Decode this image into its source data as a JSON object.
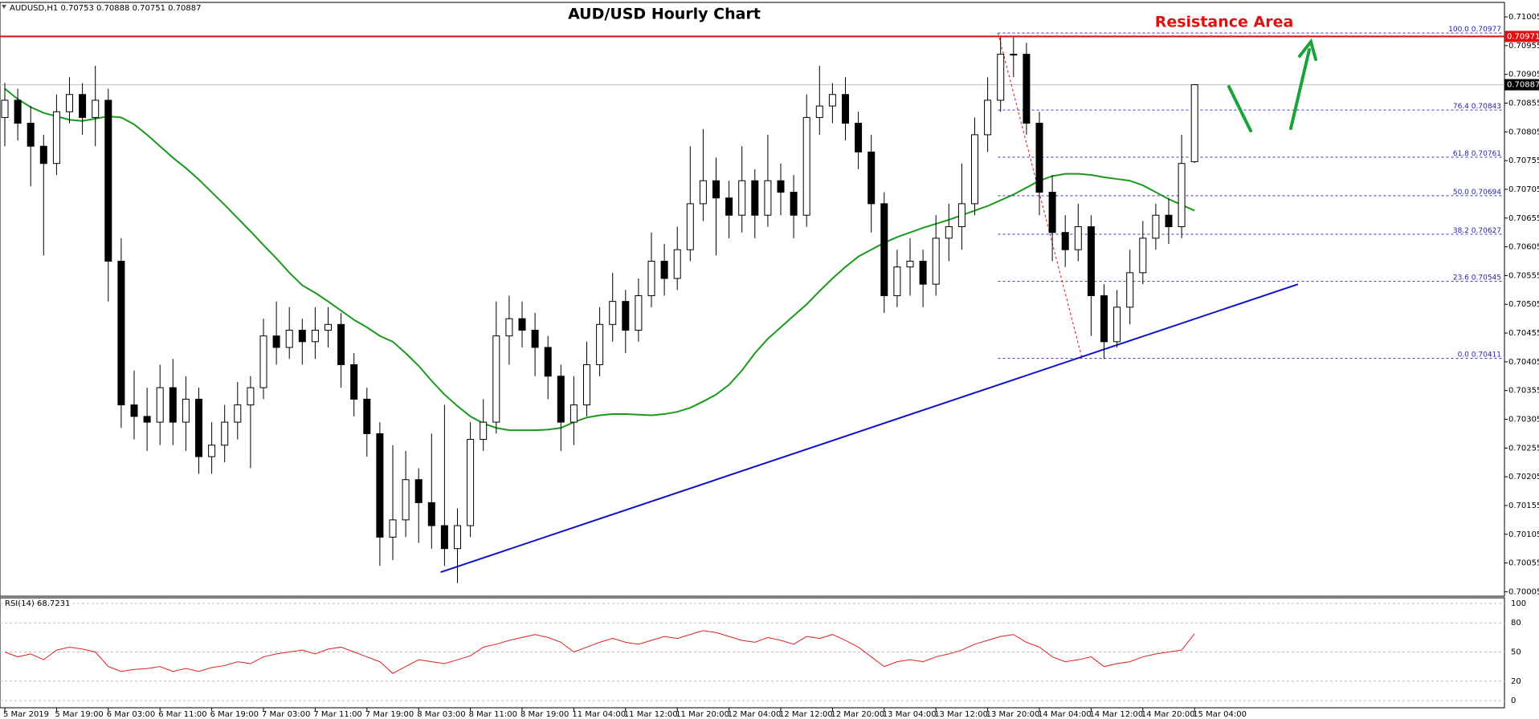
{
  "chart_data": [
    {
      "type": "candlestick",
      "title": "AUD/USD Hourly Chart",
      "symbol": "AUDUSD,H1",
      "annotation": "Resistance Area",
      "categories": [
        "5 Mar 2019",
        null,
        null,
        null,
        "5 Mar 19:00",
        null,
        null,
        null,
        "6 Mar 03:00",
        null,
        null,
        null,
        "6 Mar 11:00",
        null,
        null,
        null,
        "6 Mar 19:00",
        null,
        null,
        null,
        "7 Mar 03:00",
        null,
        null,
        null,
        "7 Mar 11:00",
        null,
        null,
        null,
        "7 Mar 19:00",
        null,
        null,
        null,
        "8 Mar 03:00",
        null,
        null,
        null,
        "8 Mar 11:00",
        null,
        null,
        null,
        "8 Mar 19:00",
        null,
        null,
        null,
        "11 Mar 04:00",
        null,
        null,
        null,
        "11 Mar 12:00",
        null,
        null,
        null,
        "11 Mar 20:00",
        null,
        null,
        null,
        "12 Mar 04:00",
        null,
        null,
        null,
        "12 Mar 12:00",
        null,
        null,
        null,
        "12 Mar 20:00",
        null,
        null,
        null,
        "13 Mar 04:00",
        null,
        null,
        null,
        "13 Mar 12:00",
        null,
        null,
        null,
        "13 Mar 20:00",
        null,
        null,
        null,
        "14 Mar 04:00",
        null,
        null,
        null,
        "14 Mar 12:00",
        null,
        null,
        null,
        "14 Mar 20:00",
        null,
        null,
        null,
        "15 Mar 04:00"
      ],
      "open": [
        0.7083,
        0.7086,
        0.7082,
        0.7078,
        0.7075,
        0.7084,
        0.7087,
        0.7083,
        0.7086,
        0.7058,
        0.7033,
        0.7031,
        0.703,
        0.7036,
        0.703,
        0.7034,
        0.7024,
        0.7026,
        0.703,
        0.7033,
        0.7036,
        0.7045,
        0.7043,
        0.7046,
        0.7044,
        0.7046,
        0.7047,
        0.704,
        0.7034,
        0.7028,
        0.701,
        0.7013,
        0.702,
        0.7016,
        0.7012,
        0.7008,
        0.7012,
        0.7027,
        0.703,
        0.7045,
        0.7048,
        0.7046,
        0.7043,
        0.7038,
        0.703,
        0.7033,
        0.704,
        0.7047,
        0.7051,
        0.7046,
        0.7052,
        0.7058,
        0.7055,
        0.706,
        0.7068,
        0.7072,
        0.7069,
        0.7066,
        0.7072,
        0.7066,
        0.7072,
        0.707,
        0.7066,
        0.7083,
        0.7085,
        0.7087,
        0.7082,
        0.7077,
        0.7068,
        0.7052,
        0.7057,
        0.7058,
        0.7054,
        0.7062,
        0.7064,
        0.7068,
        0.708,
        0.7086,
        0.7094,
        0.7094,
        0.7082,
        0.707,
        0.7063,
        0.706,
        0.7064,
        0.7052,
        0.7044,
        0.705,
        0.7056,
        0.7062,
        0.7066,
        0.7064,
        0.70753
      ],
      "high": [
        0.7089,
        0.7088,
        0.7085,
        0.708,
        0.7087,
        0.709,
        0.7089,
        0.7092,
        0.7088,
        0.7062,
        0.7039,
        0.7036,
        0.704,
        0.7041,
        0.7038,
        0.7036,
        0.703,
        0.7033,
        0.7037,
        0.7038,
        0.7048,
        0.7051,
        0.705,
        0.7048,
        0.705,
        0.705,
        0.7049,
        0.7042,
        0.7036,
        0.703,
        0.7026,
        0.7025,
        0.7022,
        0.7028,
        0.7033,
        0.7015,
        0.703,
        0.7034,
        0.7051,
        0.7052,
        0.7051,
        0.7049,
        0.7045,
        0.704,
        0.7038,
        0.7044,
        0.705,
        0.7056,
        0.7053,
        0.7055,
        0.7063,
        0.7061,
        0.7064,
        0.7078,
        0.7081,
        0.7076,
        0.7072,
        0.7078,
        0.7074,
        0.708,
        0.7075,
        0.7073,
        0.7087,
        0.7092,
        0.7089,
        0.709,
        0.7084,
        0.708,
        0.707,
        0.706,
        0.7062,
        0.706,
        0.7066,
        0.7068,
        0.7075,
        0.7083,
        0.709,
        0.7097,
        0.7097,
        0.7096,
        0.7084,
        0.7073,
        0.7066,
        0.7068,
        0.7066,
        0.7054,
        0.7053,
        0.706,
        0.7065,
        0.7068,
        0.7069,
        0.708,
        0.70888
      ],
      "low": [
        0.7078,
        0.7079,
        0.7071,
        0.7059,
        0.7073,
        0.7082,
        0.708,
        0.7078,
        0.7051,
        0.7029,
        0.7027,
        0.7025,
        0.7026,
        0.7026,
        0.7025,
        0.7021,
        0.7021,
        0.7023,
        0.7027,
        0.7022,
        0.7034,
        0.704,
        0.7041,
        0.704,
        0.7041,
        0.7043,
        0.7036,
        0.7031,
        0.7024,
        0.7005,
        0.7006,
        0.701,
        0.7009,
        0.7008,
        0.7005,
        0.7002,
        0.701,
        0.7025,
        0.7028,
        0.704,
        0.7043,
        0.7038,
        0.7034,
        0.7025,
        0.7026,
        0.7031,
        0.7038,
        0.7044,
        0.7042,
        0.7044,
        0.705,
        0.7052,
        0.7053,
        0.7058,
        0.7065,
        0.7059,
        0.7062,
        0.7063,
        0.7062,
        0.7064,
        0.7066,
        0.7062,
        0.7064,
        0.708,
        0.7082,
        0.7079,
        0.7074,
        0.7063,
        0.7049,
        0.705,
        0.7052,
        0.705,
        0.7052,
        0.7058,
        0.706,
        0.7066,
        0.7077,
        0.7084,
        0.709,
        0.708,
        0.7066,
        0.7058,
        0.7057,
        0.7058,
        0.7045,
        0.7041,
        0.7043,
        0.7047,
        0.7054,
        0.706,
        0.7061,
        0.7062,
        0.70751
      ],
      "close": [
        0.7086,
        0.7082,
        0.7078,
        0.7075,
        0.7084,
        0.7087,
        0.7083,
        0.7086,
        0.7058,
        0.7033,
        0.7031,
        0.703,
        0.7036,
        0.703,
        0.7034,
        0.7024,
        0.7026,
        0.703,
        0.7033,
        0.7036,
        0.7045,
        0.7043,
        0.7046,
        0.7044,
        0.7046,
        0.7047,
        0.704,
        0.7034,
        0.7028,
        0.701,
        0.7013,
        0.702,
        0.7016,
        0.7012,
        0.7008,
        0.7012,
        0.7027,
        0.703,
        0.7045,
        0.7048,
        0.7046,
        0.7043,
        0.7038,
        0.703,
        0.7033,
        0.704,
        0.7047,
        0.7051,
        0.7046,
        0.7052,
        0.7058,
        0.7055,
        0.706,
        0.7068,
        0.7072,
        0.7069,
        0.7066,
        0.7072,
        0.7066,
        0.7072,
        0.707,
        0.7066,
        0.7083,
        0.7085,
        0.7087,
        0.7082,
        0.7077,
        0.7068,
        0.7052,
        0.7057,
        0.7058,
        0.7054,
        0.7062,
        0.7064,
        0.7068,
        0.708,
        0.7086,
        0.7094,
        0.7094,
        0.7082,
        0.707,
        0.7063,
        0.706,
        0.7064,
        0.7052,
        0.7044,
        0.705,
        0.7056,
        0.7062,
        0.7066,
        0.7064,
        0.7075,
        0.70887
      ],
      "up_color": "#ffffff",
      "down_color": "#000000",
      "ylim": [
        0.7,
        0.71026
      ],
      "yticks": [
        0.70005,
        0.70055,
        0.70105,
        0.70155,
        0.70205,
        0.70255,
        0.70305,
        0.70355,
        0.70405,
        0.70455,
        0.70505,
        0.70555,
        0.70605,
        0.70655,
        0.70705,
        0.70755,
        0.70805,
        0.70855,
        0.70905,
        0.70955,
        0.71005
      ],
      "ma": {
        "color": "#1a9a1a",
        "values": [
          0.7088,
          0.70862,
          0.70848,
          0.70838,
          0.70832,
          0.70826,
          0.70824,
          0.70828,
          0.70832,
          0.7083,
          0.70818,
          0.708,
          0.7078,
          0.7076,
          0.70742,
          0.70722,
          0.707,
          0.70678,
          0.70655,
          0.70632,
          0.70608,
          0.70585,
          0.7056,
          0.70538,
          0.70525,
          0.7051,
          0.70494,
          0.70478,
          0.70465,
          0.7045,
          0.7044,
          0.7042,
          0.70398,
          0.70372,
          0.70348,
          0.70328,
          0.7031,
          0.70298,
          0.7029,
          0.70286,
          0.70286,
          0.70286,
          0.70287,
          0.7029,
          0.703,
          0.70308,
          0.70312,
          0.70314,
          0.70314,
          0.70313,
          0.70312,
          0.70314,
          0.70318,
          0.70325,
          0.70336,
          0.70348,
          0.70365,
          0.7039,
          0.7042,
          0.70445,
          0.70465,
          0.70485,
          0.70505,
          0.70528,
          0.7055,
          0.7057,
          0.70588,
          0.706,
          0.70612,
          0.70622,
          0.7063,
          0.70638,
          0.70645,
          0.70652,
          0.7066,
          0.70668,
          0.70676,
          0.70686,
          0.70696,
          0.70708,
          0.7072,
          0.70728,
          0.70732,
          0.70732,
          0.7073,
          0.70726,
          0.70723,
          0.7072,
          0.70712,
          0.707,
          0.70688,
          0.70678,
          0.70668
        ]
      },
      "resistance": {
        "value": 0.70971,
        "color": "#e01010"
      },
      "trendline": {
        "x": [
          33.7,
          100
        ],
        "y": [
          0.70039,
          0.7054
        ],
        "color": "#1010cc"
      },
      "fib": {
        "x": [
          76.8,
          83.3
        ],
        "color": "#3333cc",
        "levels": [
          {
            "ratio": "100.0",
            "value": 0.70977
          },
          {
            "ratio": "76.4",
            "value": 0.70843
          },
          {
            "ratio": "61.8",
            "value": 0.70761
          },
          {
            "ratio": "50.0",
            "value": 0.70694
          },
          {
            "ratio": "38.2",
            "value": 0.70627
          },
          {
            "ratio": "23.6",
            "value": 0.70545
          },
          {
            "ratio": "0.0",
            "value": 0.70411
          }
        ]
      }
    },
    {
      "type": "line",
      "name": "RSI(14)",
      "color": "#e02020",
      "values": [
        50,
        45,
        48,
        42,
        52,
        55,
        53,
        50,
        35,
        30,
        32,
        33,
        35,
        30,
        33,
        30,
        34,
        36,
        40,
        38,
        45,
        48,
        50,
        52,
        48,
        53,
        55,
        50,
        45,
        40,
        28,
        35,
        42,
        40,
        38,
        42,
        46,
        55,
        58,
        62,
        65,
        68,
        65,
        60,
        50,
        55,
        60,
        64,
        60,
        58,
        62,
        66,
        64,
        68,
        72,
        70,
        66,
        62,
        60,
        65,
        62,
        58,
        66,
        64,
        68,
        62,
        55,
        45,
        35,
        40,
        42,
        40,
        45,
        48,
        52,
        58,
        62,
        66,
        68,
        60,
        55,
        45,
        40,
        42,
        45,
        35,
        38,
        40,
        45,
        48,
        50,
        52,
        68.7231
      ],
      "ylim": [
        0,
        100
      ],
      "yticks": [
        0,
        20,
        50,
        80,
        100
      ]
    }
  ]
}
